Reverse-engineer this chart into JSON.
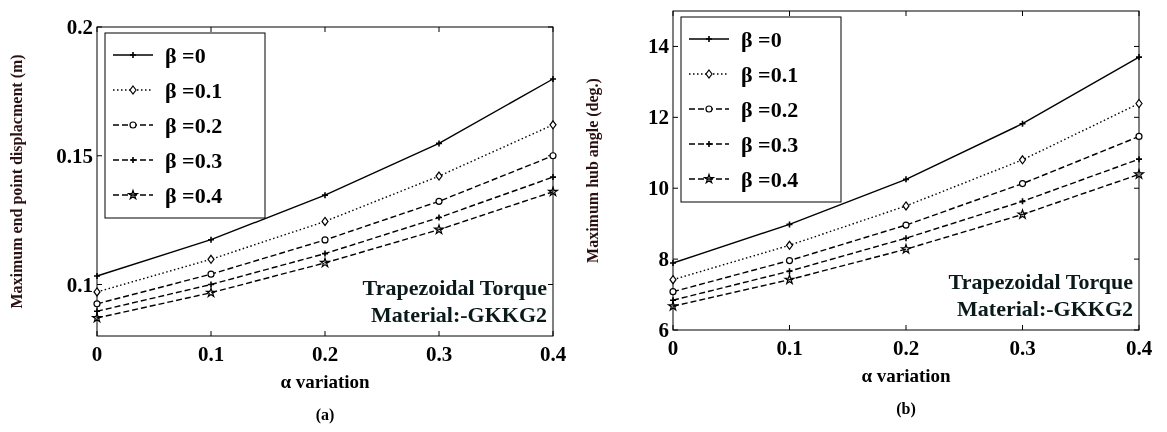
{
  "chart_data": [
    {
      "type": "line",
      "xlabel": "α variation",
      "ylabel": "Maximum end point displacment (m)",
      "x": [
        0,
        0.1,
        0.2,
        0.3,
        0.4
      ],
      "xlim": [
        0,
        0.4
      ],
      "xticks": [
        0,
        0.1,
        0.2,
        0.3,
        0.4
      ],
      "ylim": [
        0.08,
        0.2
      ],
      "yticks": [
        0.1,
        0.15,
        0.2
      ],
      "legend": "top left",
      "grid": false,
      "annotations": [
        "Trapezoidal Torque",
        "Material:-GKKG2",
        "(a)"
      ],
      "series": [
        {
          "name": "β =0",
          "color": "#000000",
          "marker": "cross",
          "line_style": "solid",
          "values": [
            0.1033,
            0.1174,
            0.1347,
            0.1548,
            0.1798
          ]
        },
        {
          "name": "β =0.1",
          "color": "#000000",
          "marker": "diamond",
          "line_style": "dotted",
          "values": [
            0.0971,
            0.1098,
            0.1245,
            0.1421,
            0.162
          ]
        },
        {
          "name": "β =0.2",
          "color": "#000000",
          "marker": "circle",
          "line_style": "dashed",
          "values": [
            0.0925,
            0.104,
            0.1173,
            0.1323,
            0.15
          ]
        },
        {
          "name": "β =0.3",
          "color": "#000000",
          "marker": "cross",
          "line_style": "dashed",
          "values": [
            0.0896,
            0.1,
            0.112,
            0.126,
            0.1417
          ]
        },
        {
          "name": "β =0.4",
          "color": "#000000",
          "marker": "star",
          "line_style": "dashed",
          "values": [
            0.087,
            0.0968,
            0.1084,
            0.1213,
            0.136
          ]
        }
      ]
    },
    {
      "type": "line",
      "xlabel": "α variation",
      "ylabel": "Maximum hub angle (deg.)",
      "x": [
        0,
        0.1,
        0.2,
        0.3,
        0.4
      ],
      "xlim": [
        0,
        0.4
      ],
      "xticks": [
        0,
        0.1,
        0.2,
        0.3,
        0.4
      ],
      "ylim": [
        6,
        15
      ],
      "yticks": [
        6,
        8,
        10,
        12,
        14
      ],
      "legend": "top left",
      "grid": false,
      "annotations": [
        "Trapezoidal Torque",
        "Material:-GKKG2",
        "(b)"
      ],
      "series": [
        {
          "name": "β =0",
          "color": "#000000",
          "marker": "cross",
          "line_style": "solid",
          "values": [
            7.89,
            8.98,
            10.25,
            11.82,
            13.7
          ]
        },
        {
          "name": "β =0.1",
          "color": "#000000",
          "marker": "diamond",
          "line_style": "dotted",
          "values": [
            7.42,
            8.39,
            9.5,
            10.8,
            12.39
          ]
        },
        {
          "name": "β =0.2",
          "color": "#000000",
          "marker": "circle",
          "line_style": "dashed",
          "values": [
            7.08,
            7.96,
            8.96,
            10.13,
            11.46
          ]
        },
        {
          "name": "β =0.3",
          "color": "#000000",
          "marker": "cross",
          "line_style": "dashed",
          "values": [
            6.84,
            7.66,
            8.59,
            9.63,
            10.82
          ]
        },
        {
          "name": "β =0.4",
          "color": "#000000",
          "marker": "star",
          "line_style": "dashed",
          "values": [
            6.67,
            7.42,
            8.28,
            9.26,
            10.39
          ]
        }
      ]
    }
  ]
}
